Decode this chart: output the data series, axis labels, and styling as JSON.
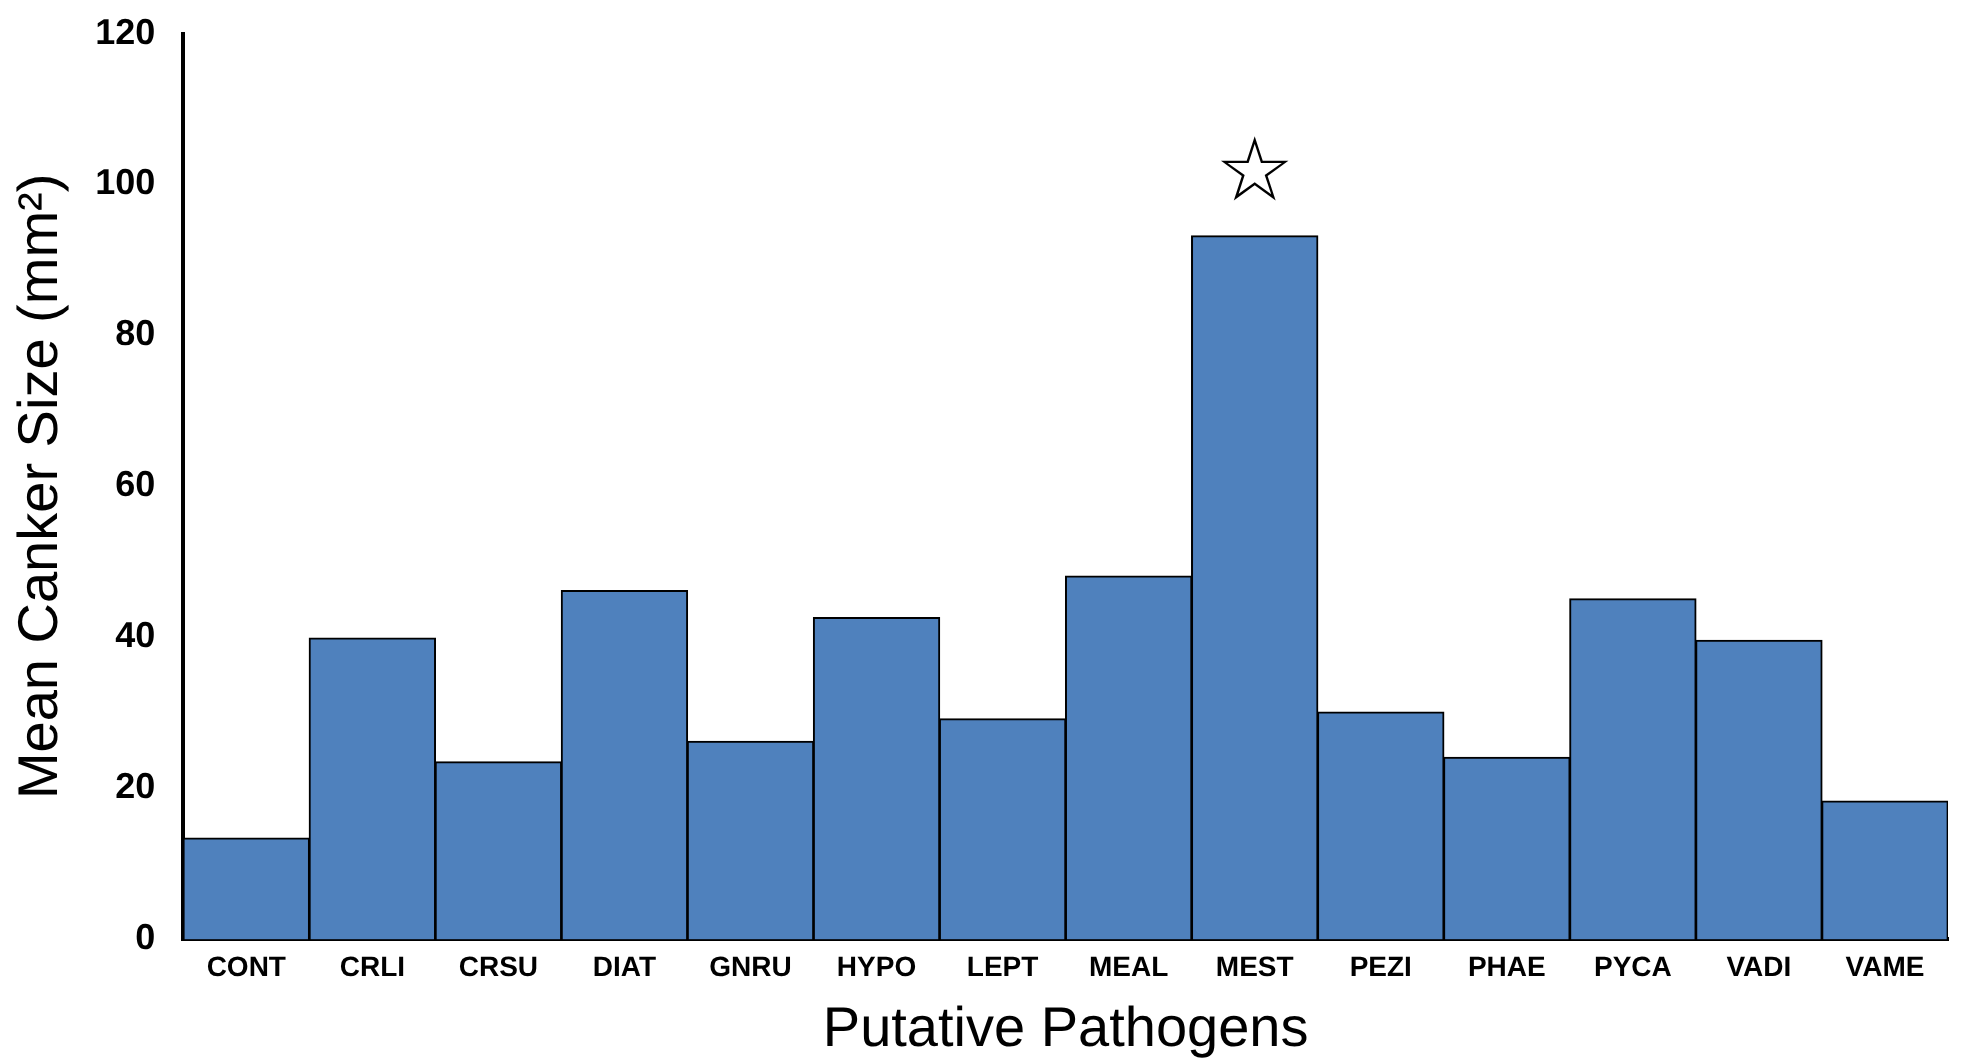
{
  "chart_data": {
    "type": "bar",
    "xlabel": "Putative Pathogens",
    "ylabel": "Mean Canker Size (mm²)",
    "categories": [
      "CONT",
      "CRLI",
      "CRSU",
      "DIAT",
      "GNRU",
      "HYPO",
      "LEPT",
      "MEAL",
      "MEST",
      "PEZI",
      "PHAE",
      "PYCA",
      "VADI",
      "VAME"
    ],
    "values": [
      13.4,
      39.9,
      23.5,
      46.2,
      26.2,
      42.6,
      29.2,
      48.1,
      93.2,
      30.1,
      24.1,
      45.1,
      39.6,
      18.3
    ],
    "color": "#4f81bd",
    "ylim": [
      0,
      120
    ],
    "yticks": [
      0,
      20,
      40,
      60,
      80,
      100,
      120
    ],
    "grid": false,
    "legend": false,
    "annotations": [
      "☆"
    ]
  }
}
